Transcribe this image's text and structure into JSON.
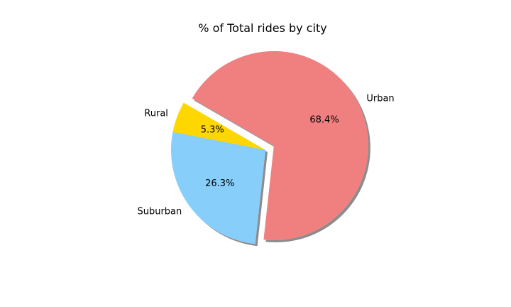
{
  "chart_data": {
    "type": "pie",
    "title": "% of Total rides by city",
    "labels": [
      "Rural",
      "Suburban",
      "Urban"
    ],
    "values": [
      5.3,
      26.3,
      68.4
    ],
    "percent_labels": [
      "5.3%",
      "26.3%",
      "68.4%"
    ],
    "colors": [
      "#FFD700",
      "#87CEFA",
      "#F08080"
    ],
    "explode": [
      0,
      0,
      0.1
    ],
    "start_angle_deg": 150,
    "shadow": true
  }
}
